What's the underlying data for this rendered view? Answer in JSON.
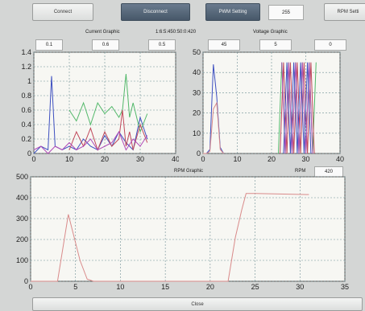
{
  "toolbar": {
    "connect": "Connect",
    "disconnect": "Disconnect",
    "pwm_setting": "PWM Setting",
    "pwm_value": "255",
    "rpm_setting": "RPM Setti"
  },
  "current": {
    "title": "Current Graphic",
    "values": [
      "0.1",
      "0.6",
      "0.5"
    ],
    "ratio": "1:6:5:450:50:0:420"
  },
  "voltage": {
    "title": "Voltage Graphic",
    "values": [
      "45",
      "5",
      "0"
    ]
  },
  "rpm": {
    "title": "RPM Graphic",
    "label": "RPM",
    "value": "420"
  },
  "close_label": "Close",
  "colors": {
    "blue": "#3d4fc0",
    "red": "#c0485a",
    "green": "#52b86a",
    "magenta": "#b04ab8",
    "pink": "#d98a8a",
    "grid": "#6f8f94"
  },
  "chart_data": [
    {
      "type": "line",
      "ylim": [
        0,
        1.4
      ],
      "xlim": [
        0,
        40
      ],
      "yticks": [
        0,
        0.2,
        0.4,
        0.6,
        0.8,
        1,
        1.2,
        1.4
      ],
      "xticks": [
        0,
        10,
        20,
        30,
        40
      ],
      "grid": true,
      "series": [
        {
          "color": "#3d4fc0",
          "x": [
            0,
            2,
            4,
            5,
            6,
            8,
            10,
            12,
            14,
            16,
            18,
            20,
            22,
            24,
            26,
            28,
            30,
            32
          ],
          "y": [
            0,
            0.1,
            0.05,
            1.07,
            0.1,
            0.05,
            0.1,
            0.05,
            0.2,
            0.1,
            0.05,
            0.25,
            0.1,
            0.3,
            0.15,
            0.05,
            0.5,
            0.2
          ]
        },
        {
          "color": "#52b86a",
          "x": [
            10,
            12,
            14,
            16,
            18,
            20,
            22,
            24,
            25,
            26,
            27,
            28,
            30,
            32
          ],
          "y": [
            0.6,
            0.45,
            0.7,
            0.4,
            0.7,
            0.55,
            0.65,
            0.5,
            0.6,
            1.1,
            0.5,
            0.7,
            0.3,
            0.55
          ]
        },
        {
          "color": "#c0485a",
          "x": [
            10,
            12,
            14,
            16,
            18,
            20,
            22,
            24,
            25,
            26,
            27,
            28,
            30,
            32
          ],
          "y": [
            0.05,
            0.3,
            0.1,
            0.35,
            0.05,
            0.3,
            0.1,
            0.2,
            0.6,
            0.1,
            0.3,
            0.05,
            0.4,
            0.15
          ]
        },
        {
          "color": "#b04ab8",
          "x": [
            0,
            2,
            4,
            6,
            8,
            10,
            12,
            14,
            16,
            18,
            20,
            22,
            24,
            26,
            28,
            30,
            32
          ],
          "y": [
            0.05,
            0.1,
            0,
            0.1,
            0.05,
            0.15,
            0.05,
            0.1,
            0.2,
            0.05,
            0.1,
            0.15,
            0.3,
            0.05,
            0.2,
            0.1,
            0.25
          ]
        }
      ]
    },
    {
      "type": "line",
      "ylim": [
        0,
        50
      ],
      "xlim": [
        0,
        40
      ],
      "yticks": [
        0,
        10,
        20,
        30,
        40,
        50
      ],
      "xticks": [
        0,
        10,
        20,
        30,
        40
      ],
      "grid": true,
      "series": [
        {
          "color": "#3d4fc0",
          "x": [
            0,
            1,
            2,
            3,
            4,
            5,
            6
          ],
          "y": [
            0,
            0,
            2,
            44,
            28,
            3,
            0
          ]
        },
        {
          "color": "#d98a8a",
          "x": [
            0,
            1,
            2,
            3,
            4,
            5,
            6
          ],
          "y": [
            0,
            0,
            1,
            22,
            25,
            2,
            0
          ]
        },
        {
          "color": "#52b86a",
          "x": [
            22,
            23,
            24,
            25,
            26,
            27,
            28,
            29,
            30,
            31,
            32,
            33
          ],
          "y": [
            0,
            45,
            0,
            45,
            0,
            45,
            0,
            45,
            0,
            45,
            0,
            45
          ]
        },
        {
          "color": "#c0485a",
          "x": [
            22.5,
            23.5,
            24.5,
            25.5,
            26.5,
            27.5,
            28.5,
            29.5,
            30.5,
            31.5,
            32.5
          ],
          "y": [
            0,
            45,
            0,
            45,
            0,
            45,
            0,
            45,
            0,
            45,
            0
          ]
        },
        {
          "color": "#b04ab8",
          "x": [
            23,
            24,
            25,
            26,
            27,
            28,
            29,
            30,
            31,
            32
          ],
          "y": [
            45,
            0,
            45,
            0,
            45,
            0,
            45,
            0,
            45,
            0
          ]
        },
        {
          "color": "#3d4fc0",
          "x": [
            23.5,
            24.5,
            25.5,
            26.5,
            27.5,
            28.5,
            29.5,
            30.5,
            31.5
          ],
          "y": [
            0,
            45,
            0,
            45,
            0,
            45,
            0,
            45,
            0
          ]
        }
      ]
    },
    {
      "type": "line",
      "ylim": [
        0,
        500
      ],
      "xlim": [
        0,
        35
      ],
      "yticks": [
        0,
        100,
        200,
        300,
        400,
        500
      ],
      "xticks": [
        0,
        5,
        10,
        15,
        20,
        25,
        30,
        35
      ],
      "grid": true,
      "series": [
        {
          "color": "#d98a8a",
          "x": [
            0,
            3,
            4.2,
            5.5,
            6.3,
            7,
            22,
            22.8,
            23.5,
            24,
            25,
            31
          ],
          "y": [
            0,
            0,
            320,
            100,
            10,
            0,
            0,
            210,
            340,
            420,
            420,
            415
          ]
        }
      ]
    }
  ]
}
